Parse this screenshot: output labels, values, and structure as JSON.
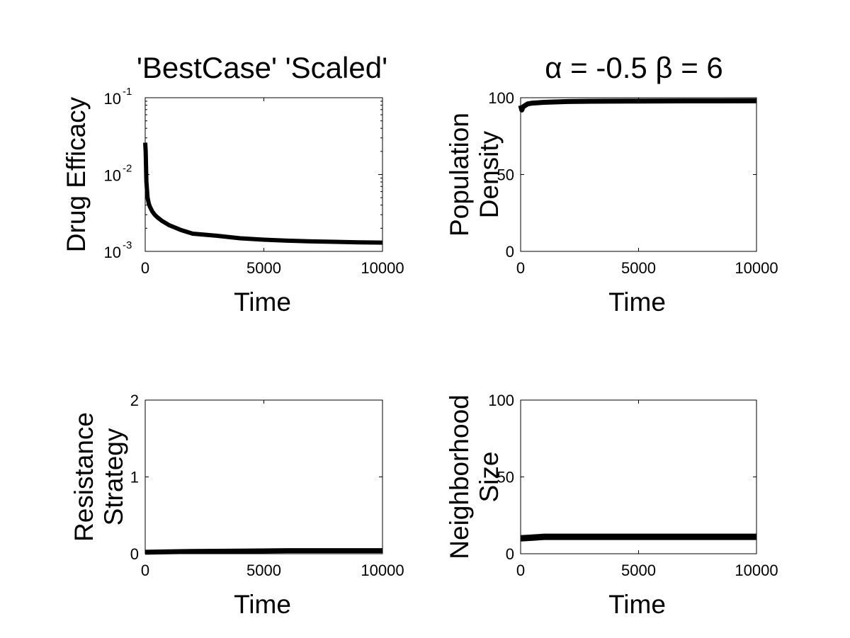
{
  "figure": {
    "title_left": "'BestCase' 'Scaled'",
    "title_right": "α = -0.5 β = 6"
  },
  "chart_data": [
    {
      "type": "line",
      "id": "drug-efficacy",
      "xlabel": "Time",
      "ylabel": [
        "Drug Efficacy"
      ],
      "xlim": [
        0,
        10000
      ],
      "ylim": [
        0.001,
        0.1
      ],
      "yscale": "log",
      "xticks": [
        0,
        5000,
        10000
      ],
      "yticks": [
        {
          "value": 0.1,
          "base": "10",
          "exp": "-1"
        },
        {
          "value": 0.01,
          "base": "10",
          "exp": "-2"
        },
        {
          "value": 0.001,
          "base": "10",
          "exp": "-3"
        }
      ],
      "series": [
        {
          "color": "#000000",
          "x": [
            0,
            20,
            50,
            100,
            150,
            200,
            300,
            400,
            500,
            700,
            1000,
            1500,
            2000,
            3000,
            4000,
            5000,
            6000,
            7000,
            8000,
            9000,
            10000
          ],
          "y": [
            0.026,
            0.02,
            0.008,
            0.005,
            0.0042,
            0.0038,
            0.0033,
            0.003,
            0.0028,
            0.0025,
            0.0022,
            0.0019,
            0.0017,
            0.0016,
            0.00148,
            0.00142,
            0.00138,
            0.00135,
            0.00133,
            0.00131,
            0.0013
          ]
        }
      ]
    },
    {
      "type": "line",
      "id": "population-density",
      "xlabel": "Time",
      "ylabel": [
        "Population",
        "Density"
      ],
      "xlim": [
        0,
        10000
      ],
      "ylim": [
        0,
        100
      ],
      "yscale": "linear",
      "xticks": [
        0,
        5000,
        10000
      ],
      "yticks": [
        0,
        50,
        100
      ],
      "series": [
        {
          "color": "#000000",
          "x": [
            0,
            50,
            100,
            200,
            300,
            500,
            1000,
            2000,
            3000,
            5000,
            7000,
            10000
          ],
          "y": [
            95,
            92,
            94,
            95,
            96,
            96.5,
            97,
            97.5,
            97.7,
            97.8,
            97.9,
            98
          ]
        }
      ]
    },
    {
      "type": "line",
      "id": "resistance-strategy",
      "xlabel": "Time",
      "ylabel": [
        "Resistance",
        "Strategy"
      ],
      "xlim": [
        0,
        10000
      ],
      "ylim": [
        0,
        2
      ],
      "yscale": "linear",
      "xticks": [
        0,
        5000,
        10000
      ],
      "yticks": [
        0,
        1,
        2
      ],
      "series": [
        {
          "color": "#000000",
          "x": [
            0,
            1000,
            2000,
            4000,
            6000,
            8000,
            10000
          ],
          "y": [
            0.02,
            0.025,
            0.03,
            0.035,
            0.04,
            0.04,
            0.04
          ]
        }
      ]
    },
    {
      "type": "line",
      "id": "neighborhood-size",
      "xlabel": "Time",
      "ylabel": [
        "Neighborhood",
        "Size"
      ],
      "xlim": [
        0,
        10000
      ],
      "ylim": [
        0,
        100
      ],
      "yscale": "linear",
      "xticks": [
        0,
        5000,
        10000
      ],
      "yticks": [
        0,
        50,
        100
      ],
      "series": [
        {
          "color": "#000000",
          "x": [
            0,
            500,
            1000,
            2000,
            5000,
            10000
          ],
          "y": [
            10,
            10.5,
            11,
            11,
            11,
            11
          ]
        }
      ]
    }
  ]
}
